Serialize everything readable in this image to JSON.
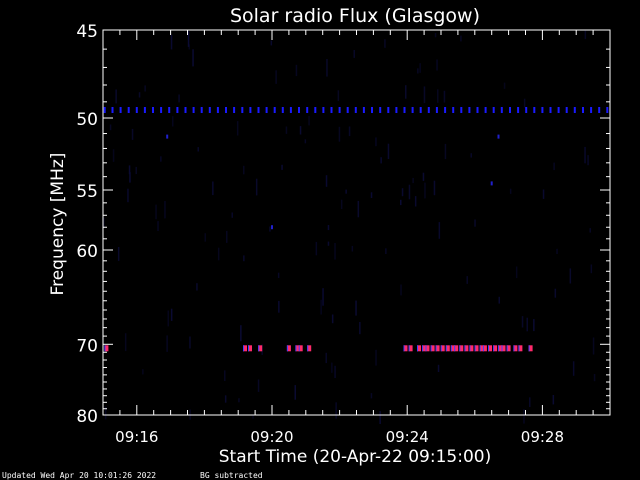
{
  "chart_data": {
    "type": "heatmap",
    "title": "Solar radio Flux (Glasgow)",
    "xlabel": "Start Time (20-Apr-22 09:15:00)",
    "ylabel": "Frequency [MHz]",
    "x_tick_labels": [
      "09:16",
      "09:20",
      "09:24",
      "09:28"
    ],
    "x_tick_values_min": [
      1,
      5,
      9,
      13
    ],
    "xlim_min": [
      0,
      15
    ],
    "y_tick_labels": [
      "45",
      "50",
      "55",
      "60",
      "70",
      "80"
    ],
    "y_tick_values": [
      45,
      50,
      55,
      60,
      70,
      80
    ],
    "ylim": [
      45,
      80
    ],
    "y_scale": "reciprocal",
    "grid": false,
    "colors": {
      "background": "#000000",
      "foreground": "#ffffff",
      "band_50mhz": "#1a1aff",
      "band_70mhz": "#ff2a6a",
      "noise": "#0a0a33"
    },
    "features": [
      {
        "name": "band_50mhz",
        "freq_mhz": 49.5,
        "minutes": [
          0.05,
          0.28,
          0.52,
          0.76,
          1.0,
          1.24,
          1.48,
          1.72,
          1.96,
          2.2,
          2.44,
          2.68,
          2.92,
          3.16,
          3.4,
          3.64,
          3.88,
          4.12,
          4.36,
          4.6,
          4.84,
          5.08,
          5.32,
          5.56,
          5.8,
          6.04,
          6.28,
          6.52,
          6.76,
          7.0,
          7.24,
          7.48,
          7.72,
          7.96,
          8.2,
          8.44,
          8.68,
          8.92,
          9.16,
          9.4,
          9.64,
          9.88,
          10.12,
          10.36,
          10.6,
          10.84,
          11.08,
          11.32,
          11.56,
          11.8,
          12.04,
          12.28,
          12.52,
          12.76,
          13.0,
          13.24,
          13.48,
          13.72,
          13.96,
          14.2,
          14.44,
          14.68,
          14.92
        ]
      },
      {
        "name": "band_70mhz",
        "freq_mhz": 70.5,
        "minutes": [
          0.1,
          4.2,
          4.35,
          4.65,
          5.5,
          5.75,
          5.85,
          6.1,
          8.95,
          9.1,
          9.35,
          9.5,
          9.6,
          9.75,
          9.9,
          10.05,
          10.2,
          10.35,
          10.45,
          10.6,
          10.75,
          10.9,
          11.05,
          11.2,
          11.3,
          11.45,
          11.6,
          11.75,
          11.85,
          12.0,
          12.2,
          12.35,
          12.65
        ]
      },
      {
        "name": "isolated_points",
        "points": [
          [
            1.9,
            51.2
          ],
          [
            11.7,
            51.2
          ],
          [
            5.0,
            58.0
          ],
          [
            11.5,
            54.5
          ]
        ]
      }
    ]
  },
  "footer": {
    "updated": "Updated Wed Apr 20 10:01:26 2022",
    "note": "BG subtracted"
  }
}
